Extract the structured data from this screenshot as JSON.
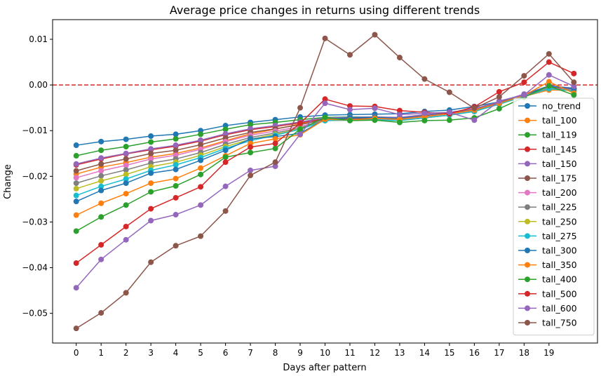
{
  "chart_data": {
    "type": "line",
    "title": "Average price changes in returns using different trends",
    "xlabel": "Days after pattern",
    "ylabel": "Change",
    "xlim": [
      -0.95,
      20.95
    ],
    "ylim": [
      -0.0565,
      0.0143
    ],
    "x_ticks": [
      0,
      1,
      2,
      3,
      4,
      5,
      6,
      7,
      8,
      9,
      10,
      11,
      12,
      13,
      14,
      15,
      16,
      17,
      18,
      19
    ],
    "y_ticks": [
      -0.05,
      -0.04,
      -0.03,
      -0.02,
      -0.01,
      0.0,
      0.01
    ],
    "y_tick_labels": [
      "−0.05",
      "−0.04",
      "−0.03",
      "−0.02",
      "−0.01",
      "0.00",
      "0.01"
    ],
    "reference_line": {
      "y": 0.0,
      "color": "#d62728",
      "style": "dashed"
    },
    "grid": false,
    "legend_position": "right",
    "x": [
      0,
      1,
      2,
      3,
      4,
      5,
      6,
      7,
      8,
      9,
      10,
      11,
      12,
      13,
      14,
      15,
      16,
      17,
      18,
      19,
      20
    ],
    "series": [
      {
        "name": "no_trend",
        "color": "#1f77b4",
        "values": [
          -0.0132,
          -0.0124,
          -0.0119,
          -0.0112,
          -0.0108,
          -0.01,
          -0.0089,
          -0.0082,
          -0.0076,
          -0.007,
          -0.0066,
          -0.0065,
          -0.0064,
          -0.0063,
          -0.0058,
          -0.0055,
          -0.0047,
          -0.0037,
          -0.0023,
          -0.0009,
          -0.0007
        ]
      },
      {
        "name": "tall_100",
        "color": "#ff7f0e",
        "values": [
          -0.0195,
          -0.018,
          -0.017,
          -0.0158,
          -0.015,
          -0.0138,
          -0.0122,
          -0.0107,
          -0.0097,
          -0.0085,
          -0.0077,
          -0.0076,
          -0.0075,
          -0.0077,
          -0.0072,
          -0.0066,
          -0.0058,
          -0.0042,
          -0.0025,
          -0.0011,
          -0.0012
        ]
      },
      {
        "name": "tall_119",
        "color": "#2ca02c",
        "values": [
          -0.0155,
          -0.0143,
          -0.0135,
          -0.0125,
          -0.0118,
          -0.0108,
          -0.0097,
          -0.0087,
          -0.0082,
          -0.0076,
          -0.0071,
          -0.007,
          -0.007,
          -0.0072,
          -0.0067,
          -0.0062,
          -0.0055,
          -0.004,
          -0.0023,
          -0.0006,
          -0.0011
        ]
      },
      {
        "name": "tall_145",
        "color": "#d62728",
        "values": [
          -0.0175,
          -0.0162,
          -0.0151,
          -0.0142,
          -0.0134,
          -0.0123,
          -0.0109,
          -0.0098,
          -0.0091,
          -0.0083,
          -0.0074,
          -0.0073,
          -0.0072,
          -0.0073,
          -0.0067,
          -0.0062,
          -0.0054,
          -0.0039,
          -0.0021,
          -0.0003,
          -0.0008
        ]
      },
      {
        "name": "tall_150",
        "color": "#9467bd",
        "values": [
          -0.0173,
          -0.016,
          -0.015,
          -0.014,
          -0.0132,
          -0.0121,
          -0.0107,
          -0.0096,
          -0.0089,
          -0.0081,
          -0.0072,
          -0.0071,
          -0.007,
          -0.0071,
          -0.0065,
          -0.006,
          -0.0052,
          -0.0037,
          -0.002,
          -0.0002,
          -0.0007
        ]
      },
      {
        "name": "tall_175",
        "color": "#8c564b",
        "values": [
          -0.0188,
          -0.0173,
          -0.0162,
          -0.015,
          -0.0143,
          -0.0131,
          -0.0116,
          -0.0104,
          -0.0096,
          -0.0087,
          -0.0075,
          -0.0074,
          -0.0073,
          -0.0074,
          -0.0068,
          -0.0062,
          -0.0055,
          -0.0039,
          -0.0022,
          -0.0004,
          -0.0009
        ]
      },
      {
        "name": "tall_200",
        "color": "#e377c2",
        "values": [
          -0.0203,
          -0.0188,
          -0.0176,
          -0.0162,
          -0.0154,
          -0.0141,
          -0.0124,
          -0.011,
          -0.0101,
          -0.0091,
          -0.0077,
          -0.0076,
          -0.0075,
          -0.0077,
          -0.0071,
          -0.0065,
          -0.0057,
          -0.0041,
          -0.0024,
          -0.0006,
          -0.0011
        ]
      },
      {
        "name": "tall_225",
        "color": "#7f7f7f",
        "values": [
          -0.0215,
          -0.0199,
          -0.0186,
          -0.0171,
          -0.0162,
          -0.0148,
          -0.013,
          -0.0115,
          -0.0105,
          -0.0094,
          -0.0078,
          -0.0077,
          -0.0076,
          -0.0078,
          -0.0072,
          -0.0066,
          -0.0058,
          -0.0042,
          -0.0025,
          -0.0007,
          -0.0012
        ]
      },
      {
        "name": "tall_250",
        "color": "#bcbd22",
        "values": [
          -0.0227,
          -0.021,
          -0.0196,
          -0.0179,
          -0.0169,
          -0.0154,
          -0.0135,
          -0.0119,
          -0.0108,
          -0.0096,
          -0.0078,
          -0.0077,
          -0.0076,
          -0.0078,
          -0.0072,
          -0.0066,
          -0.0058,
          -0.0042,
          -0.0025,
          -0.0008,
          -0.0013
        ]
      },
      {
        "name": "tall_275",
        "color": "#17becf",
        "values": [
          -0.0242,
          -0.0222,
          -0.0206,
          -0.0187,
          -0.0175,
          -0.0159,
          -0.0139,
          -0.0122,
          -0.011,
          -0.0097,
          -0.0078,
          -0.0077,
          -0.0076,
          -0.0078,
          -0.0072,
          -0.0066,
          -0.0058,
          -0.0042,
          -0.0025,
          -0.0008,
          -0.0013
        ]
      },
      {
        "name": "tall_300",
        "color": "#1f77b4",
        "values": [
          -0.0255,
          -0.0231,
          -0.0215,
          -0.0193,
          -0.0185,
          -0.0165,
          -0.0143,
          -0.0118,
          -0.0113,
          -0.0106,
          -0.0075,
          -0.0072,
          -0.0071,
          -0.0073,
          -0.0068,
          -0.0062,
          -0.0055,
          -0.004,
          -0.0022,
          -0.0002,
          -0.0008
        ]
      },
      {
        "name": "tall_350",
        "color": "#ff7f0e",
        "values": [
          -0.0285,
          -0.0259,
          -0.0238,
          -0.0215,
          -0.0205,
          -0.0182,
          -0.0155,
          -0.0128,
          -0.0118,
          -0.0109,
          -0.0075,
          -0.0077,
          -0.0073,
          -0.0075,
          -0.0069,
          -0.0063,
          -0.0055,
          -0.004,
          -0.0023,
          0.0007,
          -0.0018
        ]
      },
      {
        "name": "tall_400",
        "color": "#2ca02c",
        "values": [
          -0.032,
          -0.0289,
          -0.0263,
          -0.0234,
          -0.0221,
          -0.0196,
          -0.0158,
          -0.0148,
          -0.0139,
          -0.0097,
          -0.0071,
          -0.0078,
          -0.0077,
          -0.0082,
          -0.0078,
          -0.0077,
          -0.0072,
          -0.0052,
          -0.0027,
          -0.0002,
          -0.0022
        ]
      },
      {
        "name": "tall_500",
        "color": "#d62728",
        "values": [
          -0.039,
          -0.035,
          -0.031,
          -0.0271,
          -0.0247,
          -0.0223,
          -0.0169,
          -0.0136,
          -0.0128,
          -0.0084,
          -0.0031,
          -0.0046,
          -0.0047,
          -0.0056,
          -0.006,
          -0.0063,
          -0.0048,
          -0.0015,
          0.0006,
          0.005,
          0.0025
        ]
      },
      {
        "name": "tall_600",
        "color": "#9467bd",
        "values": [
          -0.0444,
          -0.0382,
          -0.0339,
          -0.0297,
          -0.0284,
          -0.0263,
          -0.0222,
          -0.0187,
          -0.0178,
          -0.0108,
          -0.004,
          -0.0054,
          -0.0051,
          -0.0065,
          -0.0062,
          -0.006,
          -0.0077,
          -0.0035,
          -0.0022,
          0.0022,
          -0.0003
        ]
      },
      {
        "name": "tall_750",
        "color": "#8c564b",
        "values": [
          -0.0533,
          -0.0499,
          -0.0455,
          -0.0388,
          -0.0352,
          -0.0331,
          -0.0276,
          -0.0198,
          -0.0169,
          -0.005,
          0.0102,
          0.0066,
          0.011,
          0.006,
          0.0013,
          -0.0016,
          -0.0051,
          -0.0026,
          0.002,
          0.0068,
          0.0006
        ]
      }
    ]
  }
}
